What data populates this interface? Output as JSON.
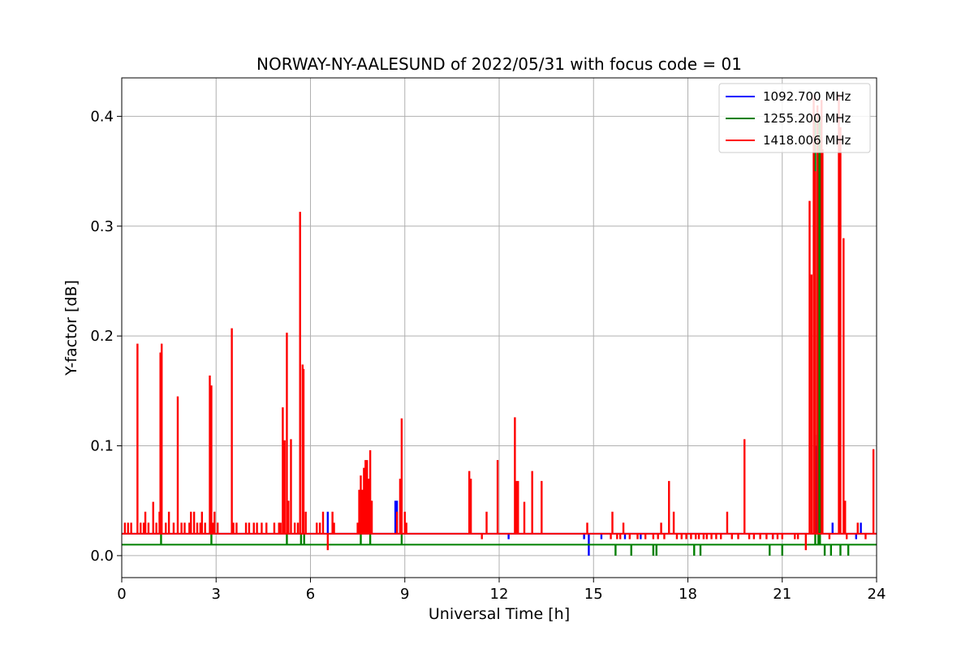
{
  "chart_data": {
    "type": "line",
    "title": "NORWAY-NY-AALESUND of 2022/05/31 with focus code = 01",
    "xlabel": "Universal Time [h]",
    "ylabel": "Y-factor [dB]",
    "xlim": [
      0,
      24
    ],
    "ylim": [
      -0.02,
      0.435
    ],
    "xticks": [
      0,
      3,
      6,
      9,
      12,
      15,
      18,
      21,
      24
    ],
    "xtick_labels": [
      "0",
      "3",
      "6",
      "9",
      "12",
      "15",
      "18",
      "21",
      "24"
    ],
    "yticks": [
      0.0,
      0.1,
      0.2,
      0.3,
      0.4
    ],
    "ytick_labels": [
      "0.0",
      "0.1",
      "0.2",
      "0.3",
      "0.4"
    ],
    "grid": true,
    "legend_position": "top-right",
    "series": [
      {
        "name": "1092.700 MHz",
        "color": "#0000ff",
        "baseline": 0.02,
        "spikes": [
          [
            0.55,
            0.02
          ],
          [
            6.55,
            0.04
          ],
          [
            8.7,
            0.05
          ],
          [
            8.75,
            0.05
          ],
          [
            12.3,
            0.015
          ],
          [
            14.7,
            0.015
          ],
          [
            14.85,
            0.0
          ],
          [
            15.25,
            0.015
          ],
          [
            16.0,
            0.015
          ],
          [
            16.5,
            0.015
          ],
          [
            20.7,
            0.015
          ],
          [
            22.05,
            0.11
          ],
          [
            22.1,
            0.1
          ],
          [
            22.2,
            0.115
          ],
          [
            22.25,
            0.03
          ],
          [
            22.6,
            0.03
          ],
          [
            23.35,
            0.015
          ],
          [
            23.5,
            0.03
          ]
        ]
      },
      {
        "name": "1255.200 MHz",
        "color": "#008000",
        "baseline": 0.01,
        "spikes": [
          [
            1.25,
            0.02
          ],
          [
            2.85,
            0.02
          ],
          [
            5.25,
            0.02
          ],
          [
            5.7,
            0.02
          ],
          [
            5.8,
            0.02
          ],
          [
            7.6,
            0.02
          ],
          [
            7.9,
            0.02
          ],
          [
            8.9,
            0.02
          ],
          [
            15.7,
            0.0
          ],
          [
            16.2,
            0.0
          ],
          [
            16.9,
            0.0
          ],
          [
            17.0,
            0.0
          ],
          [
            18.2,
            0.0
          ],
          [
            18.4,
            0.0
          ],
          [
            20.6,
            0.0
          ],
          [
            21.0,
            0.0
          ],
          [
            22.05,
            0.4
          ],
          [
            22.15,
            0.4
          ],
          [
            22.2,
            0.4
          ],
          [
            22.35,
            0.0
          ],
          [
            22.55,
            0.0
          ],
          [
            22.85,
            0.0
          ],
          [
            23.1,
            0.0
          ]
        ]
      },
      {
        "name": "1418.006 MHz",
        "color": "#ff0000",
        "baseline": 0.02,
        "spikes": [
          [
            0.1,
            0.03
          ],
          [
            0.2,
            0.03
          ],
          [
            0.3,
            0.03
          ],
          [
            0.5,
            0.193
          ],
          [
            0.6,
            0.03
          ],
          [
            0.7,
            0.03
          ],
          [
            0.75,
            0.04
          ],
          [
            0.85,
            0.03
          ],
          [
            1.0,
            0.049
          ],
          [
            1.1,
            0.03
          ],
          [
            1.2,
            0.04
          ],
          [
            1.23,
            0.185
          ],
          [
            1.27,
            0.193
          ],
          [
            1.4,
            0.03
          ],
          [
            1.5,
            0.04
          ],
          [
            1.65,
            0.03
          ],
          [
            1.78,
            0.145
          ],
          [
            1.9,
            0.03
          ],
          [
            2.0,
            0.03
          ],
          [
            2.15,
            0.03
          ],
          [
            2.2,
            0.04
          ],
          [
            2.3,
            0.04
          ],
          [
            2.4,
            0.03
          ],
          [
            2.5,
            0.03
          ],
          [
            2.55,
            0.04
          ],
          [
            2.65,
            0.03
          ],
          [
            2.8,
            0.164
          ],
          [
            2.85,
            0.155
          ],
          [
            2.9,
            0.03
          ],
          [
            2.95,
            0.04
          ],
          [
            3.05,
            0.03
          ],
          [
            3.5,
            0.207
          ],
          [
            3.55,
            0.03
          ],
          [
            3.65,
            0.03
          ],
          [
            3.95,
            0.03
          ],
          [
            4.05,
            0.03
          ],
          [
            4.2,
            0.03
          ],
          [
            4.3,
            0.03
          ],
          [
            4.45,
            0.03
          ],
          [
            4.6,
            0.03
          ],
          [
            4.85,
            0.03
          ],
          [
            5.0,
            0.03
          ],
          [
            5.05,
            0.03
          ],
          [
            5.12,
            0.135
          ],
          [
            5.18,
            0.105
          ],
          [
            5.25,
            0.203
          ],
          [
            5.3,
            0.05
          ],
          [
            5.38,
            0.106
          ],
          [
            5.5,
            0.03
          ],
          [
            5.6,
            0.03
          ],
          [
            5.67,
            0.313
          ],
          [
            5.75,
            0.174
          ],
          [
            5.78,
            0.17
          ],
          [
            5.85,
            0.04
          ],
          [
            6.2,
            0.03
          ],
          [
            6.3,
            0.03
          ],
          [
            6.4,
            0.04
          ],
          [
            6.55,
            0.005
          ],
          [
            6.7,
            0.04
          ],
          [
            6.75,
            0.03
          ],
          [
            7.5,
            0.03
          ],
          [
            7.55,
            0.06
          ],
          [
            7.6,
            0.073
          ],
          [
            7.65,
            0.06
          ],
          [
            7.7,
            0.08
          ],
          [
            7.75,
            0.087
          ],
          [
            7.8,
            0.087
          ],
          [
            7.85,
            0.07
          ],
          [
            7.9,
            0.096
          ],
          [
            7.95,
            0.05
          ],
          [
            8.75,
            0.04
          ],
          [
            8.85,
            0.07
          ],
          [
            8.9,
            0.125
          ],
          [
            9.0,
            0.04
          ],
          [
            9.05,
            0.03
          ],
          [
            11.05,
            0.077
          ],
          [
            11.1,
            0.07
          ],
          [
            11.45,
            0.015
          ],
          [
            11.6,
            0.04
          ],
          [
            11.95,
            0.087
          ],
          [
            12.5,
            0.126
          ],
          [
            12.55,
            0.068
          ],
          [
            12.6,
            0.068
          ],
          [
            12.8,
            0.049
          ],
          [
            13.05,
            0.077
          ],
          [
            13.35,
            0.068
          ],
          [
            14.8,
            0.03
          ],
          [
            15.55,
            0.015
          ],
          [
            15.6,
            0.04
          ],
          [
            15.75,
            0.015
          ],
          [
            15.85,
            0.015
          ],
          [
            15.95,
            0.03
          ],
          [
            16.15,
            0.015
          ],
          [
            16.4,
            0.015
          ],
          [
            16.65,
            0.015
          ],
          [
            16.9,
            0.015
          ],
          [
            17.05,
            0.015
          ],
          [
            17.15,
            0.03
          ],
          [
            17.25,
            0.015
          ],
          [
            17.4,
            0.068
          ],
          [
            17.55,
            0.04
          ],
          [
            17.65,
            0.015
          ],
          [
            17.8,
            0.015
          ],
          [
            17.95,
            0.015
          ],
          [
            18.1,
            0.015
          ],
          [
            18.25,
            0.015
          ],
          [
            18.35,
            0.015
          ],
          [
            18.5,
            0.015
          ],
          [
            18.6,
            0.015
          ],
          [
            18.75,
            0.015
          ],
          [
            18.9,
            0.015
          ],
          [
            19.05,
            0.015
          ],
          [
            19.25,
            0.04
          ],
          [
            19.4,
            0.015
          ],
          [
            19.6,
            0.015
          ],
          [
            19.8,
            0.106
          ],
          [
            19.95,
            0.015
          ],
          [
            20.1,
            0.015
          ],
          [
            20.3,
            0.015
          ],
          [
            20.5,
            0.015
          ],
          [
            20.7,
            0.015
          ],
          [
            20.85,
            0.015
          ],
          [
            21.0,
            0.015
          ],
          [
            21.4,
            0.015
          ],
          [
            21.5,
            0.015
          ],
          [
            21.75,
            0.005
          ],
          [
            21.87,
            0.323
          ],
          [
            21.93,
            0.256
          ],
          [
            22.0,
            0.42
          ],
          [
            22.05,
            0.35
          ],
          [
            22.12,
            0.41
          ],
          [
            22.25,
            0.415
          ],
          [
            22.28,
            0.37
          ],
          [
            22.5,
            0.015
          ],
          [
            22.8,
            0.42
          ],
          [
            22.85,
            0.39
          ],
          [
            22.95,
            0.289
          ],
          [
            23.0,
            0.05
          ],
          [
            23.05,
            0.015
          ],
          [
            23.4,
            0.03
          ],
          [
            23.65,
            0.015
          ],
          [
            23.9,
            0.097
          ]
        ]
      }
    ]
  }
}
